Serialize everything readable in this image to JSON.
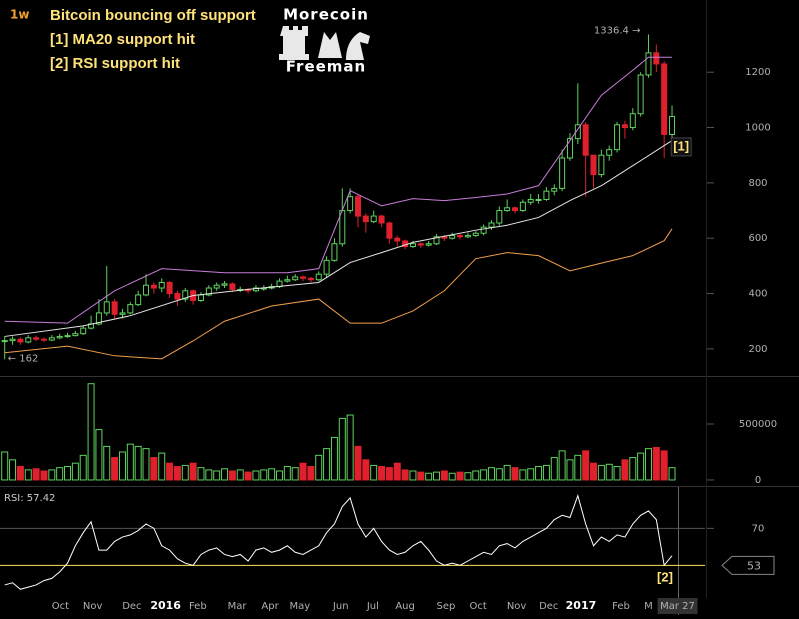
{
  "header": {
    "timeframe": "1w",
    "title": "Bitcoin bouncing off support",
    "notes": [
      "[1] MA20 support hit",
      "[2] RSI support hit"
    ]
  },
  "logo": {
    "top": "Morecoin",
    "bottom": "Freeman"
  },
  "chart_data": [
    {
      "type": "candlestick",
      "xlim": [
        -0.6,
        89.2
      ],
      "ylim": [
        102,
        1461
      ],
      "yticks": [
        200,
        400,
        600,
        800,
        1000,
        1200
      ],
      "up_color": "#5fd35f",
      "down_color": "#e0202c",
      "open": [
        230,
        230,
        235,
        225,
        240,
        235,
        232,
        240,
        245,
        248,
        255,
        275,
        290,
        330,
        370,
        325,
        330,
        360,
        395,
        430,
        420,
        440,
        400,
        380,
        410,
        375,
        395,
        420,
        430,
        435,
        415,
        415,
        410,
        420,
        420,
        425,
        445,
        450,
        460,
        455,
        450,
        470,
        520,
        580,
        700,
        750,
        680,
        660,
        680,
        655,
        600,
        590,
        570,
        580,
        575,
        580,
        605,
        600,
        610,
        605,
        610,
        618,
        640,
        655,
        700,
        710,
        700,
        730,
        740,
        740,
        770,
        780,
        890,
        960,
        1010,
        900,
        830,
        900,
        920,
        1010,
        1000,
        1050,
        1190,
        1270,
        1230,
        975
      ],
      "high": [
        245,
        245,
        242,
        250,
        248,
        242,
        250,
        255,
        258,
        265,
        285,
        320,
        380,
        500,
        380,
        345,
        370,
        410,
        470,
        440,
        455,
        445,
        410,
        420,
        415,
        405,
        430,
        440,
        445,
        440,
        425,
        420,
        430,
        430,
        435,
        455,
        465,
        470,
        465,
        460,
        480,
        535,
        600,
        780,
        780,
        760,
        690,
        700,
        685,
        660,
        610,
        595,
        590,
        585,
        590,
        615,
        612,
        620,
        615,
        620,
        625,
        650,
        665,
        715,
        740,
        715,
        740,
        760,
        760,
        785,
        795,
        920,
        980,
        1160,
        1020,
        900,
        920,
        935,
        1020,
        1025,
        1070,
        1200,
        1336.4,
        1300,
        1240,
        1080
      ],
      "low": [
        162,
        215,
        215,
        220,
        228,
        225,
        228,
        235,
        240,
        245,
        250,
        270,
        285,
        320,
        310,
        310,
        325,
        355,
        390,
        400,
        405,
        385,
        355,
        370,
        360,
        370,
        390,
        410,
        420,
        405,
        405,
        400,
        405,
        410,
        415,
        420,
        440,
        445,
        445,
        440,
        445,
        460,
        515,
        570,
        690,
        640,
        620,
        655,
        640,
        580,
        570,
        560,
        565,
        565,
        570,
        575,
        590,
        595,
        595,
        600,
        605,
        610,
        630,
        645,
        695,
        690,
        695,
        720,
        725,
        735,
        755,
        770,
        880,
        940,
        750,
        780,
        820,
        880,
        910,
        960,
        990,
        1040,
        1180,
        1200,
        890,
        950
      ],
      "close": [
        230,
        235,
        225,
        240,
        235,
        232,
        240,
        245,
        248,
        255,
        275,
        290,
        330,
        370,
        325,
        330,
        360,
        395,
        430,
        420,
        440,
        400,
        380,
        410,
        375,
        395,
        420,
        430,
        435,
        415,
        415,
        410,
        420,
        420,
        425,
        445,
        450,
        460,
        455,
        450,
        470,
        520,
        580,
        700,
        750,
        680,
        660,
        680,
        655,
        600,
        590,
        570,
        580,
        575,
        580,
        605,
        600,
        610,
        605,
        610,
        618,
        640,
        655,
        700,
        710,
        700,
        730,
        740,
        740,
        770,
        780,
        890,
        960,
        1010,
        900,
        830,
        900,
        920,
        1010,
        1000,
        1050,
        1190,
        1270,
        1230,
        975,
        1040
      ],
      "lines": [
        {
          "color": "#e6e6e6",
          "x": [
            0,
            10,
            16,
            24,
            32,
            40,
            44,
            48,
            52,
            56,
            60,
            64,
            68,
            72,
            76,
            80,
            84,
            85
          ],
          "values": [
            245,
            283,
            320,
            393,
            418,
            440,
            512,
            548,
            585,
            607,
            629,
            647,
            675,
            736,
            790,
            862,
            935,
            953
          ]
        },
        {
          "color": "#c77dd8",
          "x": [
            0,
            8,
            14,
            20,
            28,
            36,
            40,
            44,
            48,
            52,
            56,
            60,
            64,
            68,
            72,
            76,
            80,
            82,
            85
          ],
          "values": [
            300,
            293,
            410,
            490,
            475,
            475,
            490,
            772,
            717,
            743,
            736,
            747,
            760,
            790,
            953,
            1117,
            1207,
            1254,
            1254
          ]
        },
        {
          "color": "#f0a04b",
          "x": [
            0,
            8,
            14,
            20,
            24,
            28,
            34,
            40,
            44,
            48,
            52,
            56,
            60,
            64,
            68,
            72,
            76,
            80,
            84,
            85
          ],
          "values": [
            186,
            210,
            175,
            164,
            229,
            300,
            355,
            380,
            293,
            293,
            337,
            410,
            526,
            548,
            537,
            482,
            510,
            537,
            591,
            634
          ]
        }
      ],
      "annotations": [
        {
          "text": "1336.4 →",
          "x": 82,
          "y": 1336.4
        },
        {
          "text": "← 162",
          "x": 0,
          "y": 162
        },
        {
          "text": "[1]",
          "x": 84,
          "y": 930
        }
      ]
    },
    {
      "type": "bar",
      "xlim": [
        -0.6,
        89.2
      ],
      "ylim": [
        -45000,
        920000
      ],
      "yticks": [
        0,
        500000
      ],
      "values": [
        250000,
        180000,
        120000,
        90000,
        100000,
        80000,
        90000,
        110000,
        120000,
        150000,
        220000,
        860000,
        450000,
        300000,
        200000,
        250000,
        320000,
        300000,
        280000,
        200000,
        240000,
        150000,
        120000,
        130000,
        150000,
        110000,
        90000,
        80000,
        100000,
        80000,
        90000,
        70000,
        80000,
        90000,
        100000,
        80000,
        120000,
        110000,
        150000,
        120000,
        220000,
        280000,
        380000,
        550000,
        580000,
        300000,
        180000,
        130000,
        120000,
        110000,
        150000,
        90000,
        80000,
        70000,
        60000,
        70000,
        80000,
        60000,
        70000,
        65000,
        80000,
        90000,
        110000,
        100000,
        130000,
        110000,
        90000,
        100000,
        120000,
        130000,
        200000,
        260000,
        180000,
        220000,
        260000,
        150000,
        130000,
        140000,
        120000,
        180000,
        200000,
        240000,
        280000,
        290000,
        260000,
        110000
      ]
    },
    {
      "type": "line",
      "label": "RSI: 57.42",
      "xlim": [
        -0.6,
        89.2
      ],
      "ylim": [
        38,
        89
      ],
      "yticks": [
        70
      ],
      "color": "#ffffff",
      "level": 53,
      "level_color": "#ffe44d",
      "annotation": "[2]",
      "values": [
        44,
        45,
        42,
        43,
        44,
        46,
        47,
        50,
        54,
        62,
        68,
        73,
        60,
        60,
        64,
        66,
        67,
        69,
        72,
        70,
        62,
        60,
        56,
        54,
        53,
        58,
        60,
        61,
        58,
        57,
        58,
        55,
        60,
        61,
        59,
        60,
        62,
        59,
        58,
        60,
        62,
        68,
        72,
        80,
        84,
        72,
        66,
        70,
        64,
        60,
        58,
        59,
        62,
        64,
        60,
        55,
        53,
        54,
        53,
        55,
        57,
        59,
        58,
        62,
        63,
        61,
        64,
        66,
        68,
        70,
        74,
        76,
        75,
        85,
        72,
        62,
        66,
        64,
        67,
        66,
        72,
        76,
        78,
        74,
        53,
        57.42
      ],
      "xticks": [
        {
          "value": 7.1,
          "label": "Oct"
        },
        {
          "value": 11.2,
          "label": "Nov"
        },
        {
          "value": 16.2,
          "label": "Dec"
        },
        {
          "value": 20.5,
          "label": "2016"
        },
        {
          "value": 24.6,
          "label": "Feb"
        },
        {
          "value": 29.6,
          "label": "Mar"
        },
        {
          "value": 33.8,
          "label": "Apr"
        },
        {
          "value": 37.6,
          "label": "May"
        },
        {
          "value": 42.8,
          "label": "Jun"
        },
        {
          "value": 46.9,
          "label": "Jul"
        },
        {
          "value": 51,
          "label": "Aug"
        },
        {
          "value": 56.2,
          "label": "Sep"
        },
        {
          "value": 60.3,
          "label": "Oct"
        },
        {
          "value": 65.2,
          "label": "Nov"
        },
        {
          "value": 69.3,
          "label": "Dec"
        },
        {
          "value": 73.4,
          "label": "2017"
        },
        {
          "value": 78.5,
          "label": "Feb"
        },
        {
          "value": 82,
          "label": "M"
        },
        {
          "value": 85.7,
          "label": "Mar 27"
        }
      ]
    }
  ]
}
